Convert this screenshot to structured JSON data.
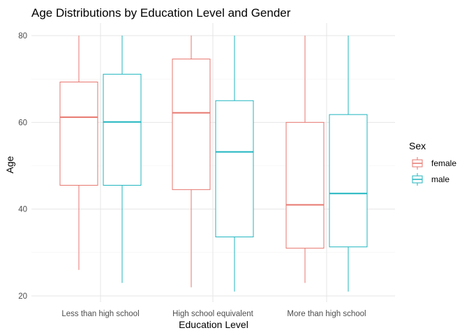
{
  "chart_data": {
    "type": "boxplot",
    "title": "Age Distributions by Education Level and Gender",
    "xlabel": "Education Level",
    "ylabel": "Age",
    "ylim": [
      20,
      81
    ],
    "yticks": [
      20,
      40,
      60,
      80
    ],
    "categories": [
      "Less than high school",
      "High school equivalent",
      "More than high school"
    ],
    "grid": true,
    "legend": {
      "title": "Sex",
      "position": "right"
    },
    "series": [
      {
        "name": "female",
        "color": "#E7766E",
        "boxes": [
          {
            "min": 26,
            "q1": 45.5,
            "median": 61.2,
            "q3": 69.3,
            "max": 80
          },
          {
            "min": 22,
            "q1": 44.5,
            "median": 62.2,
            "q3": 74.6,
            "max": 80
          },
          {
            "min": 23,
            "q1": 31,
            "median": 41,
            "q3": 60,
            "max": 80
          }
        ]
      },
      {
        "name": "male",
        "color": "#1FB5BF",
        "boxes": [
          {
            "min": 23,
            "q1": 45.5,
            "median": 60.1,
            "q3": 71.1,
            "max": 80
          },
          {
            "min": 21,
            "q1": 33.6,
            "median": 53.2,
            "q3": 65,
            "max": 80
          },
          {
            "min": 21,
            "q1": 31.3,
            "median": 43.6,
            "q3": 61.8,
            "max": 80
          }
        ]
      }
    ]
  }
}
